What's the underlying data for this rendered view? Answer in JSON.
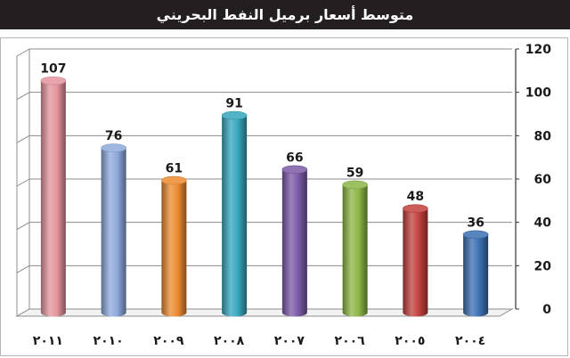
{
  "header": {
    "title": "متوسط أسعار برميل النفط البحريني"
  },
  "chart_data": {
    "type": "bar",
    "title": "متوسط أسعار برميل النفط البحريني",
    "categories": [
      "٢٠١١",
      "٢٠١٠",
      "٢٠٠٩",
      "٢٠٠٨",
      "٢٠٠٧",
      "٢٠٠٦",
      "٢٠٠٥",
      "٢٠٠٤"
    ],
    "values": [
      107,
      76,
      61,
      91,
      66,
      59,
      48,
      36
    ],
    "colors": [
      "#e3949b",
      "#8ea9dc",
      "#ec8a30",
      "#36a6bd",
      "#7b5aa6",
      "#8cb547",
      "#c1403d",
      "#3b6fb1"
    ],
    "ylim": [
      0,
      120
    ],
    "yticks": [
      0,
      20,
      40,
      60,
      80,
      100,
      120
    ],
    "ytick_labels": [
      "0",
      "20",
      "40",
      "60",
      "80",
      "100",
      "120"
    ],
    "yaxis_side": "right",
    "grid": true,
    "xlabel": "",
    "ylabel": ""
  }
}
